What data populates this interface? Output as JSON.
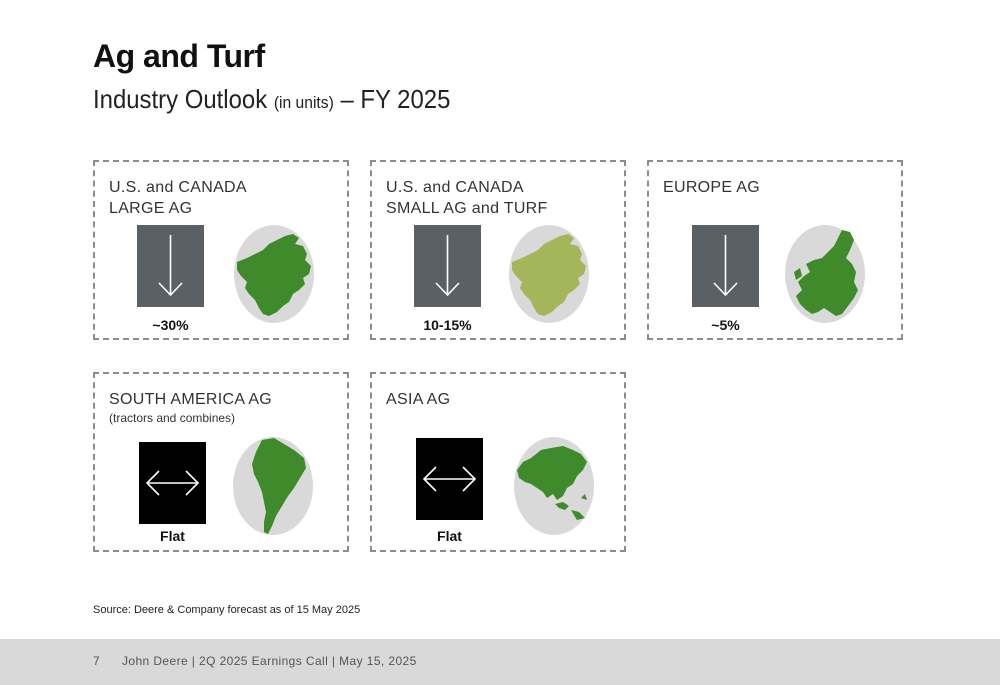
{
  "header": {
    "title": "Ag and Turf",
    "subtitle_main": "Industry Outlook",
    "subtitle_units": "(in units)",
    "subtitle_period": "– FY 2025"
  },
  "panels": [
    {
      "label": "U.S. and CANADA\nLARGE AG",
      "note": "",
      "value": "~30%",
      "direction": "down",
      "map": "north-america-map",
      "colors": {
        "arrow_box": "#5b6064",
        "map": "#3f8a2a",
        "map_bg": "#d9d9d9"
      }
    },
    {
      "label": "U.S. and CANADA\nSMALL AG and TURF",
      "note": "",
      "value": "10-15%",
      "direction": "down",
      "map": "north-america-map",
      "colors": {
        "arrow_box": "#5b6064",
        "map": "#a4b55a",
        "map_bg": "#d9d9d9"
      }
    },
    {
      "label": "EUROPE AG",
      "note": "",
      "value": "~5%",
      "direction": "down",
      "map": "europe-map",
      "colors": {
        "arrow_box": "#5b6064",
        "map": "#3f8a2a",
        "map_bg": "#d9d9d9"
      }
    },
    {
      "label": "SOUTH AMERICA AG",
      "note": "(tractors and combines)",
      "value": "Flat",
      "direction": "flat",
      "map": "south-america-map",
      "colors": {
        "arrow_box": "#000000",
        "map": "#3f8a2a",
        "map_bg": "#d9d9d9"
      }
    },
    {
      "label": "ASIA AG",
      "note": "",
      "value": "Flat",
      "direction": "flat",
      "map": "asia-map",
      "colors": {
        "arrow_box": "#000000",
        "map": "#3f8a2a",
        "map_bg": "#d9d9d9"
      }
    }
  ],
  "source": "Source: Deere & Company forecast as of 15 May 2025",
  "footer": {
    "page_number": "7",
    "text": "John Deere | 2Q 2025 Earnings Call | May 15, 2025"
  }
}
